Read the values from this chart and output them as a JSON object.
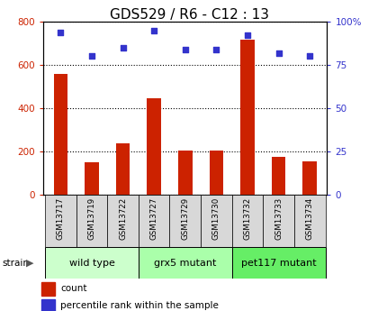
{
  "title": "GDS529 / R6 - C12 : 13",
  "samples": [
    "GSM13717",
    "GSM13719",
    "GSM13722",
    "GSM13727",
    "GSM13729",
    "GSM13730",
    "GSM13732",
    "GSM13733",
    "GSM13734"
  ],
  "counts": [
    560,
    150,
    235,
    445,
    205,
    205,
    715,
    175,
    155
  ],
  "percentiles": [
    94,
    80,
    85,
    95,
    84,
    84,
    92,
    82,
    80
  ],
  "groups": [
    {
      "label": "wild type",
      "indices": [
        0,
        1,
        2
      ],
      "color": "#ccffcc"
    },
    {
      "label": "grx5 mutant",
      "indices": [
        3,
        4,
        5
      ],
      "color": "#aaffaa"
    },
    {
      "label": "pet117 mutant",
      "indices": [
        6,
        7,
        8
      ],
      "color": "#66ee66"
    }
  ],
  "bar_color": "#cc2200",
  "dot_color": "#3333cc",
  "left_axis_color": "#cc2200",
  "right_axis_color": "#3333cc",
  "ylim_left": [
    0,
    800
  ],
  "ylim_right": [
    0,
    100
  ],
  "yticks_left": [
    0,
    200,
    400,
    600,
    800
  ],
  "yticks_right": [
    0,
    25,
    50,
    75,
    100
  ],
  "ytick_labels_right": [
    "0",
    "25",
    "50",
    "75",
    "100%"
  ],
  "title_fontsize": 11,
  "sample_box_color": "#d8d8d8",
  "bar_width": 0.45
}
